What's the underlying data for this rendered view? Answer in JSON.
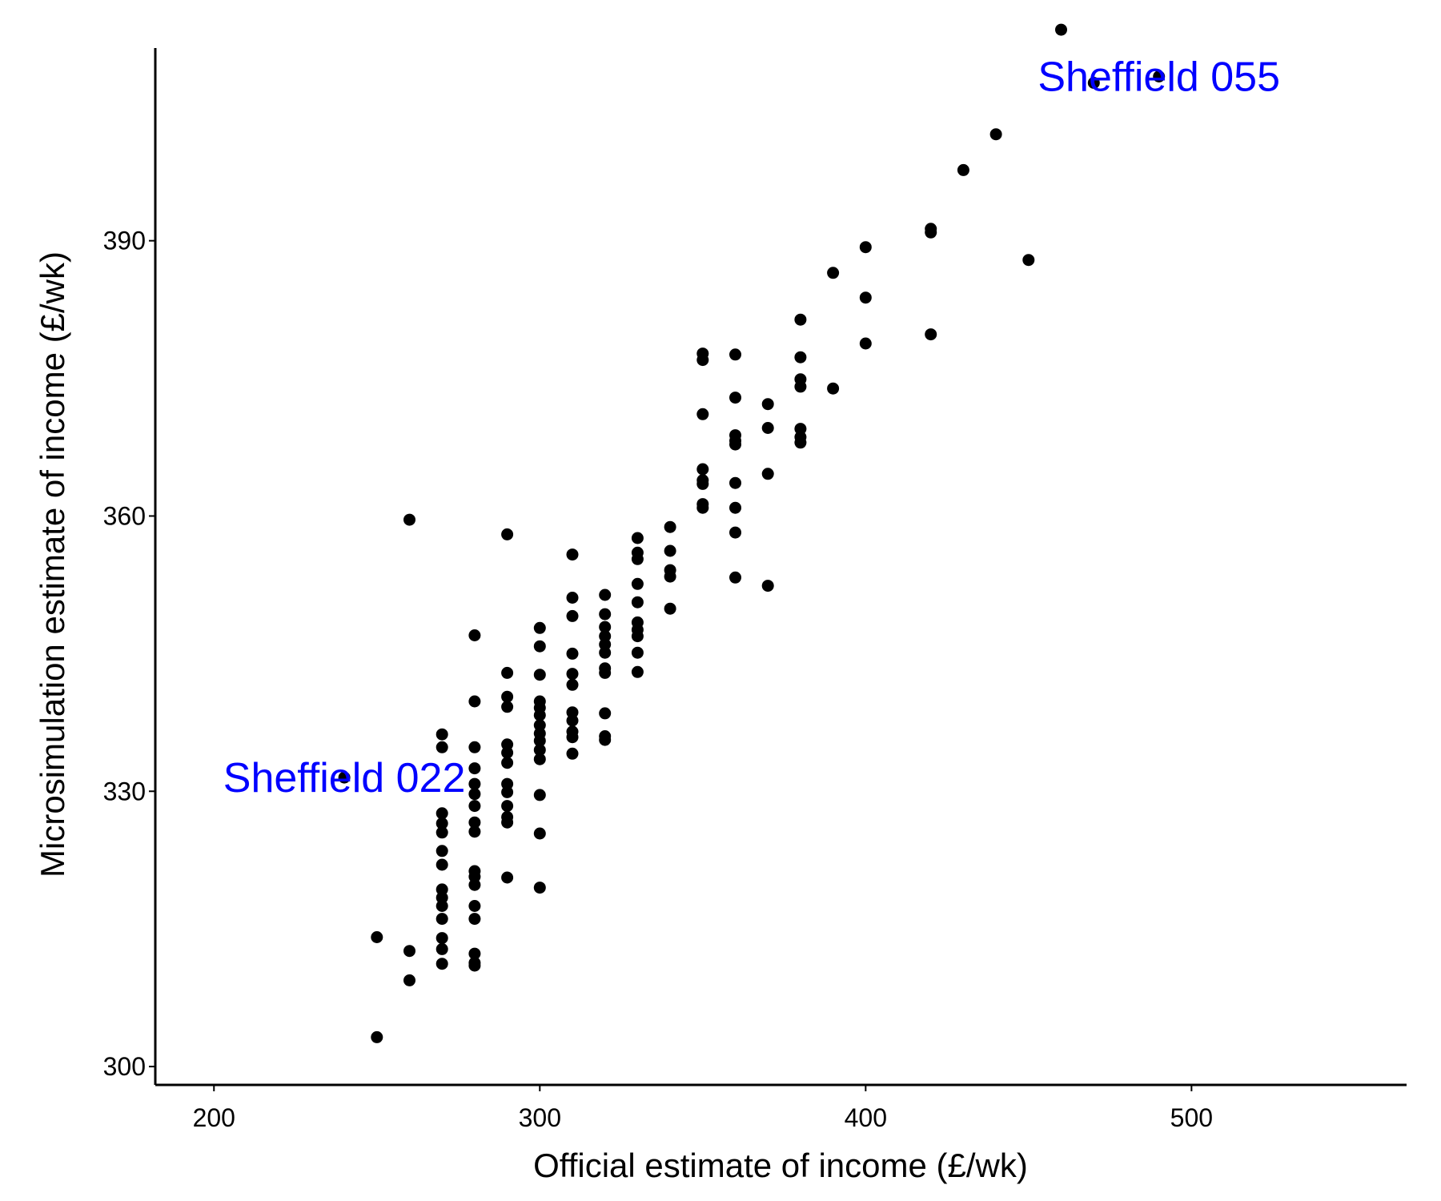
{
  "chart_data": {
    "type": "scatter",
    "title": "",
    "xlabel": "Official estimate of income (£/wk)",
    "ylabel": "Microsimulation estimate of income (£/wk)",
    "xlim": [
      182,
      566
    ],
    "ylim": [
      298,
      411
    ],
    "xticks": [
      200,
      300,
      400,
      500
    ],
    "yticks": [
      300,
      330,
      360,
      390
    ],
    "grid": false,
    "legend": "none",
    "point_color": "#000000",
    "annotation_color": "#0000ff",
    "annotations": [
      {
        "text": "Sheffield 022",
        "x": 240,
        "y": 331.5
      },
      {
        "text": "Sheffield 055",
        "x": 490,
        "y": 407.9
      }
    ],
    "points": [
      [
        240,
        331.5
      ],
      [
        250,
        314.1
      ],
      [
        250,
        303.2
      ],
      [
        260,
        359.6
      ],
      [
        260,
        312.6
      ],
      [
        260,
        309.4
      ],
      [
        270,
        336.2
      ],
      [
        270,
        334.8
      ],
      [
        270,
        327.6
      ],
      [
        270,
        326.5
      ],
      [
        270,
        325.5
      ],
      [
        270,
        323.5
      ],
      [
        270,
        322.0
      ],
      [
        270,
        319.3
      ],
      [
        270,
        318.4
      ],
      [
        270,
        317.5
      ],
      [
        270,
        316.1
      ],
      [
        270,
        314.0
      ],
      [
        270,
        312.8
      ],
      [
        270,
        311.2
      ],
      [
        280,
        347.0
      ],
      [
        280,
        339.8
      ],
      [
        280,
        334.8
      ],
      [
        280,
        332.5
      ],
      [
        280,
        330.8
      ],
      [
        280,
        329.7
      ],
      [
        280,
        328.4
      ],
      [
        280,
        326.6
      ],
      [
        280,
        325.6
      ],
      [
        280,
        321.3
      ],
      [
        280,
        320.7
      ],
      [
        280,
        319.8
      ],
      [
        280,
        317.5
      ],
      [
        280,
        316.1
      ],
      [
        280,
        312.3
      ],
      [
        280,
        311.3
      ],
      [
        280,
        311.0
      ],
      [
        290,
        358.0
      ],
      [
        290,
        342.9
      ],
      [
        290,
        340.3
      ],
      [
        290,
        339.2
      ],
      [
        290,
        335.1
      ],
      [
        290,
        334.2
      ],
      [
        290,
        333.1
      ],
      [
        290,
        330.8
      ],
      [
        290,
        329.9
      ],
      [
        290,
        328.4
      ],
      [
        290,
        327.2
      ],
      [
        290,
        326.6
      ],
      [
        290,
        320.6
      ],
      [
        300,
        347.8
      ],
      [
        300,
        345.8
      ],
      [
        300,
        342.7
      ],
      [
        300,
        339.8
      ],
      [
        300,
        339.1
      ],
      [
        300,
        338.3
      ],
      [
        300,
        337.2
      ],
      [
        300,
        336.3
      ],
      [
        300,
        335.5
      ],
      [
        300,
        334.5
      ],
      [
        300,
        333.5
      ],
      [
        300,
        329.6
      ],
      [
        300,
        325.4
      ],
      [
        300,
        319.5
      ],
      [
        310,
        355.8
      ],
      [
        310,
        351.1
      ],
      [
        310,
        349.1
      ],
      [
        310,
        345.0
      ],
      [
        310,
        342.8
      ],
      [
        310,
        341.6
      ],
      [
        310,
        338.6
      ],
      [
        310,
        337.7
      ],
      [
        310,
        336.5
      ],
      [
        310,
        335.9
      ],
      [
        310,
        334.1
      ],
      [
        320,
        351.4
      ],
      [
        320,
        349.3
      ],
      [
        320,
        347.9
      ],
      [
        320,
        346.9
      ],
      [
        320,
        346.0
      ],
      [
        320,
        345.1
      ],
      [
        320,
        343.4
      ],
      [
        320,
        342.9
      ],
      [
        320,
        338.5
      ],
      [
        320,
        336.0
      ],
      [
        320,
        335.6
      ],
      [
        330,
        357.6
      ],
      [
        330,
        356.0
      ],
      [
        330,
        355.3
      ],
      [
        330,
        352.6
      ],
      [
        330,
        350.6
      ],
      [
        330,
        348.4
      ],
      [
        330,
        347.6
      ],
      [
        330,
        346.9
      ],
      [
        330,
        345.1
      ],
      [
        330,
        343.0
      ],
      [
        340,
        358.8
      ],
      [
        340,
        356.2
      ],
      [
        340,
        354.1
      ],
      [
        340,
        353.4
      ],
      [
        340,
        349.9
      ],
      [
        350,
        377.7
      ],
      [
        350,
        377.0
      ],
      [
        350,
        371.1
      ],
      [
        350,
        365.1
      ],
      [
        350,
        363.9
      ],
      [
        350,
        363.5
      ],
      [
        350,
        361.3
      ],
      [
        350,
        360.9
      ],
      [
        360,
        377.6
      ],
      [
        360,
        372.9
      ],
      [
        360,
        368.8
      ],
      [
        360,
        368.2
      ],
      [
        360,
        367.8
      ],
      [
        360,
        363.6
      ],
      [
        360,
        360.9
      ],
      [
        360,
        358.2
      ],
      [
        360,
        353.3
      ],
      [
        370,
        372.2
      ],
      [
        370,
        369.6
      ],
      [
        370,
        364.6
      ],
      [
        370,
        352.4
      ],
      [
        380,
        381.4
      ],
      [
        380,
        377.3
      ],
      [
        380,
        374.9
      ],
      [
        380,
        374.1
      ],
      [
        380,
        369.5
      ],
      [
        380,
        368.6
      ],
      [
        380,
        368.0
      ],
      [
        390,
        386.5
      ],
      [
        390,
        373.9
      ],
      [
        400,
        389.3
      ],
      [
        400,
        383.8
      ],
      [
        400,
        378.8
      ],
      [
        420,
        391.3
      ],
      [
        420,
        390.9
      ],
      [
        420,
        379.8
      ],
      [
        430,
        397.7
      ],
      [
        440,
        401.6
      ],
      [
        450,
        387.9
      ],
      [
        460,
        413.0
      ],
      [
        470,
        407.2
      ],
      [
        490,
        407.9
      ]
    ]
  }
}
